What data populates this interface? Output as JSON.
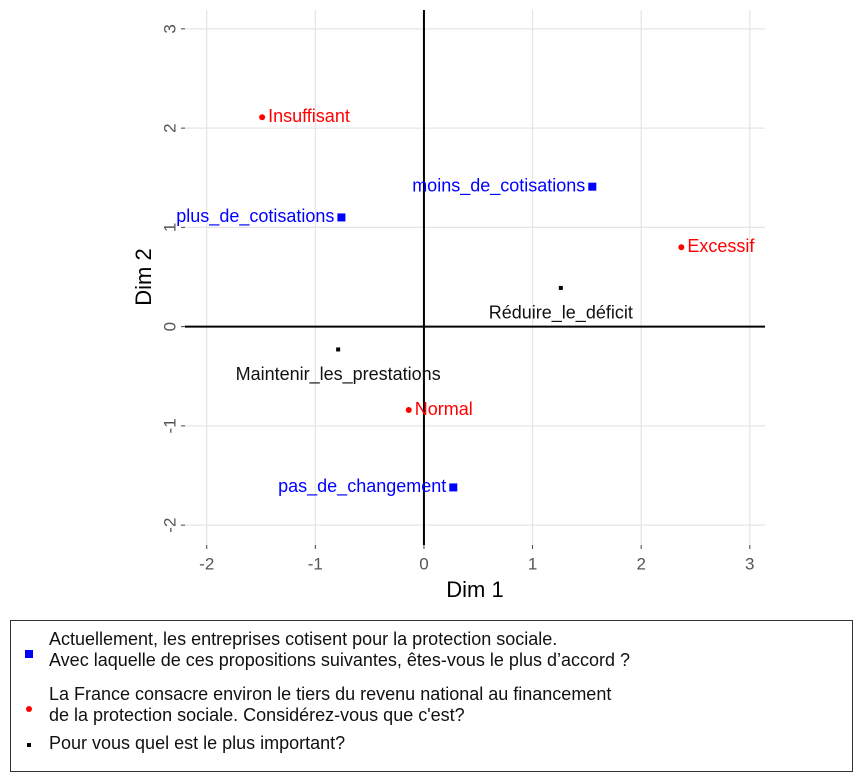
{
  "chart_data": {
    "type": "scatter",
    "xlabel": "Dim 1",
    "ylabel": "Dim 2",
    "xlim": [
      -2.2,
      3.14
    ],
    "ylim": [
      -2.2,
      3.19
    ],
    "xticks": [
      -2,
      -1,
      0,
      1,
      2,
      3
    ],
    "yticks": [
      -2,
      -1,
      0,
      1,
      2,
      3
    ],
    "grid": true,
    "series": [
      {
        "name": "Actuellement, les entreprises cotisent pour la protection sociale.\nAvec laquelle de ces propositions suivantes, êtes-vous le plus d’accord ?",
        "color": "#0000ff",
        "marker": "square",
        "label_position": "left",
        "labels": [
          "moins_de_cotisations",
          "plus_de_cotisations",
          "pas_de_changement"
        ],
        "x": [
          1.55,
          -0.76,
          0.27
        ],
        "values": [
          1.41,
          1.1,
          -1.62
        ]
      },
      {
        "name": "La France consacre environ le tiers du revenu national au financement\nde la protection sociale. Considérez-vous que c'est?",
        "color": "#ff0000",
        "marker": "circle",
        "label_position": "right",
        "labels": [
          "Insuffisant",
          "Excessif",
          "Normal"
        ],
        "x": [
          -1.49,
          2.37,
          -0.14
        ],
        "values": [
          2.11,
          0.8,
          -0.84
        ]
      },
      {
        "name": "Pour vous quel est le plus important?",
        "color": "#000000",
        "marker": "point",
        "label_position": "below",
        "labels": [
          "Réduire_le_déficit",
          "Maintenir_les_prestations"
        ],
        "x": [
          1.26,
          -0.79
        ],
        "values": [
          0.39,
          -0.23
        ]
      }
    ]
  }
}
